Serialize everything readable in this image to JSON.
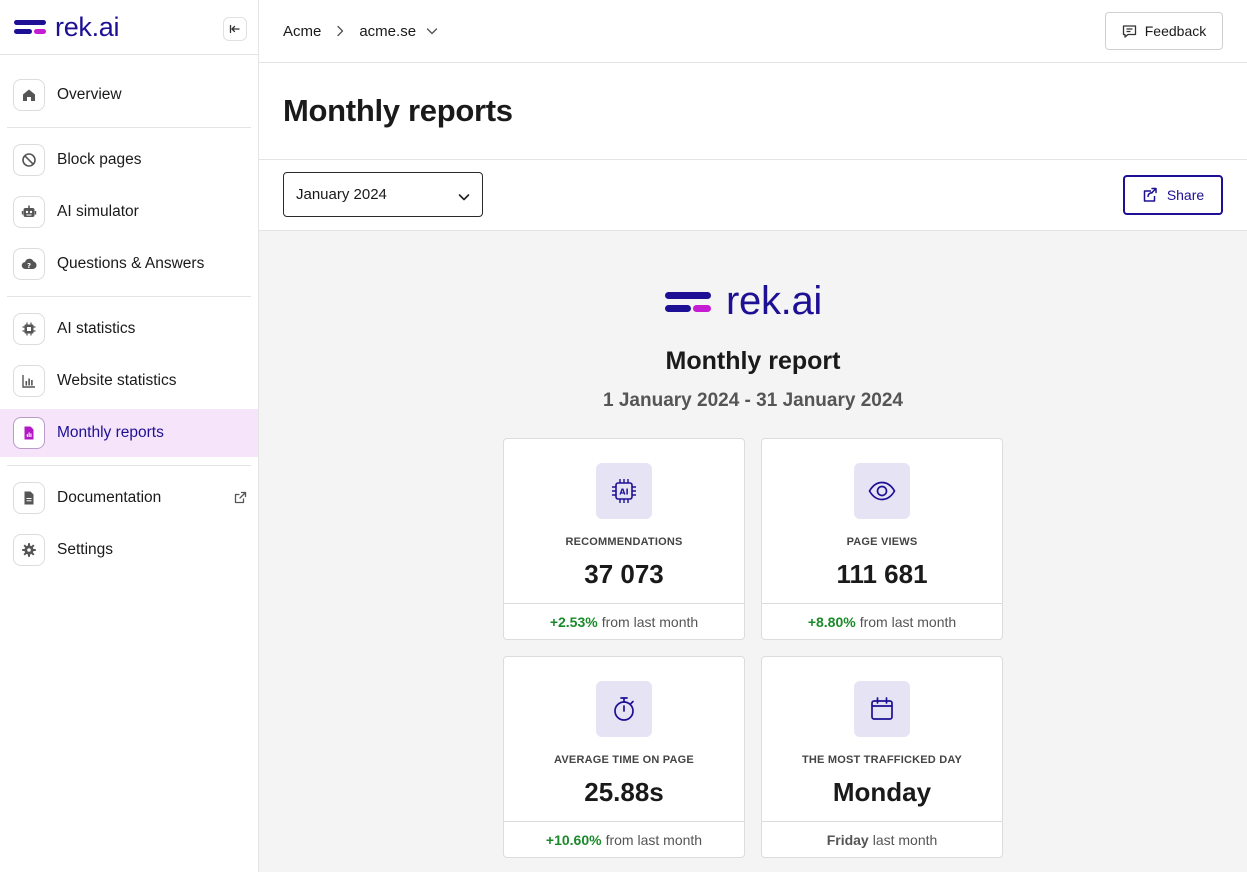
{
  "app": {
    "logo_text": "rek.ai"
  },
  "sidebar": {
    "items": [
      {
        "label": "Overview"
      },
      {
        "label": "Block pages"
      },
      {
        "label": "AI simulator"
      },
      {
        "label": "Questions & Answers"
      },
      {
        "label": "AI statistics"
      },
      {
        "label": "Website statistics"
      },
      {
        "label": "Monthly reports",
        "active": true
      },
      {
        "label": "Documentation"
      },
      {
        "label": "Settings"
      }
    ]
  },
  "header": {
    "org": "Acme",
    "site": "acme.se",
    "feedback_label": "Feedback"
  },
  "page": {
    "title": "Monthly reports",
    "month_select_value": "January 2024",
    "share_label": "Share"
  },
  "report": {
    "logo_text": "rek.ai",
    "title": "Monthly report",
    "range": "1 January 2024 - 31 January 2024",
    "cards": [
      {
        "label": "RECOMMENDATIONS",
        "value": "37 073",
        "delta": "+2.53%",
        "suffix": "from last month",
        "icon": "ai-chip-icon"
      },
      {
        "label": "PAGE VIEWS",
        "value": "111 681",
        "delta": "+8.80%",
        "suffix": "from last month",
        "icon": "eye-icon"
      },
      {
        "label": "AVERAGE TIME ON PAGE",
        "value": "25.88s",
        "delta": "+10.60%",
        "suffix": "from last month",
        "icon": "stopwatch-icon"
      },
      {
        "label": "THE MOST TRAFFICKED DAY",
        "value": "Monday",
        "prev": "Friday",
        "suffix": "last month",
        "icon": "calendar-icon"
      }
    ]
  },
  "colors": {
    "brand": "#1e1095",
    "accent": "#c41bd3",
    "active_bg": "#f6e4fa",
    "positive": "#1a8a2a"
  }
}
